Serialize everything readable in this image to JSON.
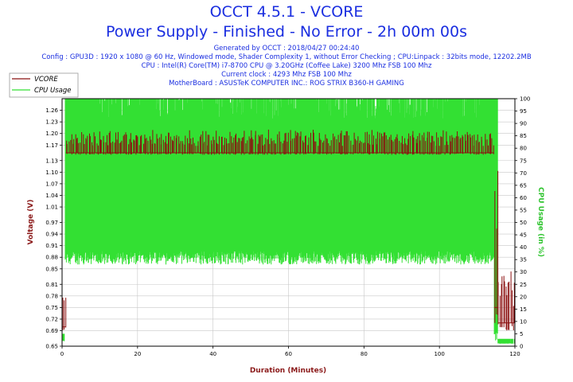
{
  "header": {
    "title": "OCCT 4.5.1 - VCORE",
    "subtitle": "Power Supply - Finished - No Error - 2h 00m 00s",
    "lines": [
      "Generated by OCCT : 2018/04/27 00:24:40",
      "Config : GPU3D : 1920 x 1080 @ 60 Hz, Windowed mode, Shader Complexity 1, without Error Checking ; CPU:Linpack : 32bits mode, 12202.2MB",
      "CPU : Intel(R) Core(TM) i7-8700 CPU @ 3.20GHz (Coffee Lake) 3200 Mhz FSB 100 Mhz",
      "Current clock : 4293 Mhz FSB 100 Mhz",
      "MotherBoard : ASUSTeK COMPUTER INC.: ROG STRIX B360-H GAMING"
    ]
  },
  "colors": {
    "vcore": "#8b1010",
    "cpu_usage": "#33e033",
    "grid": "#c8c8c8",
    "title": "#1a2ee0"
  },
  "chart_data": {
    "type": "line",
    "xlabel": "Duration (Minutes)",
    "ylabel_left": "Voltage (V)",
    "ylabel_right": "CPU Usage (in %)",
    "xlim": [
      0,
      120
    ],
    "ylim_left": [
      0.65,
      1.29
    ],
    "ylim_right": [
      0,
      100
    ],
    "x_ticks": [
      "0",
      "20",
      "40",
      "60",
      "80",
      "100",
      "120"
    ],
    "y_left_ticks": [
      "0.65",
      "0.69",
      "0.72",
      "0.75",
      "0.78",
      "0.81",
      "0.85",
      "0.88",
      "0.91",
      "0.94",
      "0.97",
      "1.01",
      "1.04",
      "1.07",
      "1.10",
      "1.13",
      "1.17",
      "1.20",
      "1.23",
      "1.26"
    ],
    "y_right_ticks": [
      "0",
      "5",
      "10",
      "15",
      "20",
      "25",
      "30",
      "35",
      "40",
      "45",
      "50",
      "55",
      "60",
      "65",
      "70",
      "75",
      "80",
      "85",
      "90",
      "95",
      "100"
    ],
    "legend": {
      "placement": "top-left"
    },
    "series": [
      {
        "name": "VCORE",
        "axis": "left",
        "segments": [
          {
            "x_start": 0,
            "x_end": 1,
            "low": 0.69,
            "high": 0.78,
            "baseline": 0.7
          },
          {
            "x_start": 1,
            "x_end": 114.5,
            "low": 1.145,
            "high": 1.21,
            "baseline": 1.15
          },
          {
            "x_start": 114.5,
            "x_end": 115.5,
            "low": 0.7,
            "high": 1.23,
            "baseline": 0.75
          },
          {
            "x_start": 115.5,
            "x_end": 120,
            "low": 0.69,
            "high": 0.85,
            "baseline": 0.71
          }
        ]
      },
      {
        "name": "CPU Usage",
        "axis": "right",
        "segments": [
          {
            "x_start": 0,
            "x_end": 0.8,
            "low": 2,
            "high": 5
          },
          {
            "x_start": 0.8,
            "x_end": 114.5,
            "low": 33,
            "high": 100
          },
          {
            "x_start": 114.5,
            "x_end": 115.5,
            "low": 2,
            "high": 100
          },
          {
            "x_start": 115.5,
            "x_end": 120,
            "low": 1,
            "high": 3
          }
        ]
      }
    ]
  }
}
